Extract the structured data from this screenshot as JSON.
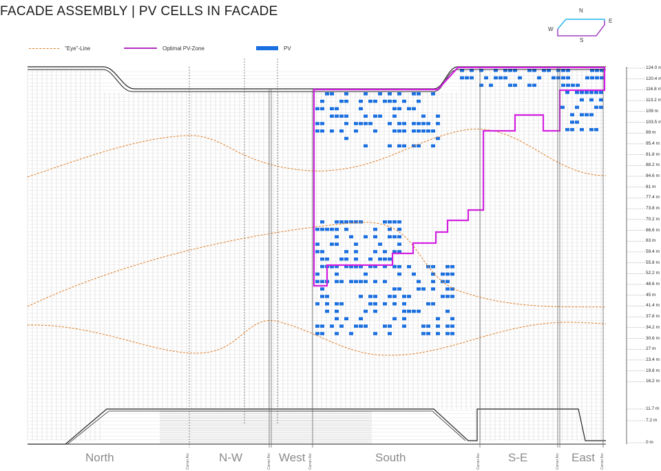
{
  "title": "FACADE ASSEMBLY | PV CELLS IN FACADE",
  "legend": [
    {
      "label": "\"Eye\"-Line",
      "color": "#e07a1f"
    },
    {
      "label": "Optimal PV-Zone",
      "color": "#b12fc0"
    },
    {
      "label": "PV",
      "color": "#1a6fe0"
    }
  ],
  "compass": {
    "n": "N",
    "e": "E",
    "s": "S",
    "w": "W",
    "colors": [
      "#23b6e8",
      "#a23fc2"
    ]
  },
  "height_scale": [
    "124.0 m",
    "120.4 m",
    "116.8 m",
    "113.2 m",
    "109 m",
    "103.5 m",
    "99 m",
    "95.4 m",
    "91.8 m",
    "88.2 m",
    "84.6 m",
    "81 m",
    "77.4 m",
    "73.8 m",
    "70.2 m",
    "66.6 m",
    "63 m",
    "59.4 m",
    "55.8 m",
    "52.2 m",
    "48.6 m",
    "45 m",
    "41.4 m",
    "37.8 m",
    "34.2 m",
    "30.6 m",
    "27 m",
    "23.4 m",
    "19.8 m",
    "16.2 m",
    "11.7 m",
    "7.2 m",
    "0 m"
  ],
  "zones": [
    "North",
    "N-W",
    "West",
    "South",
    "S-E",
    "East"
  ],
  "corner_label": "Corner Arc",
  "colors": {
    "pv": "#1a6fe0",
    "pv_zone": "#d21fe0",
    "eye_line": "#e07a1f",
    "grid": "#c9c9c9",
    "outline": "#222222"
  }
}
